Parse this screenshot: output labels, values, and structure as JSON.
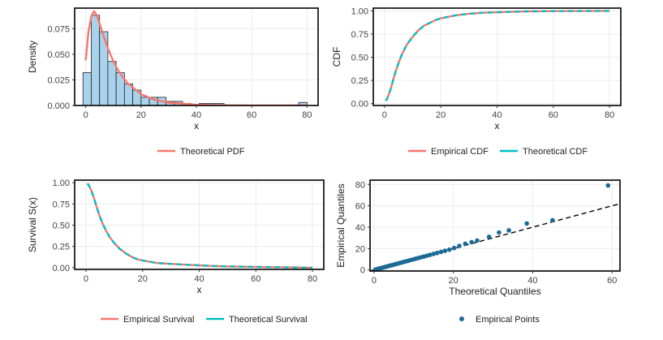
{
  "colors": {
    "red": "#F8766D",
    "cyan": "#00BFC4",
    "bar_fill": "#A9D2EC",
    "point": "#1B6B95",
    "grid": "#ECECEC",
    "ref_line": "#000000"
  },
  "chart_data": [
    {
      "id": "density",
      "type": "bar",
      "xlabel": "x",
      "ylabel": "Density",
      "xlim": [
        -4,
        84
      ],
      "ylim": [
        0,
        0.095
      ],
      "xticks": [
        0,
        20,
        40,
        60,
        80
      ],
      "xtick_labels": [
        "0",
        "20",
        "40",
        "60",
        "80"
      ],
      "yticks": [
        0,
        0.025,
        0.05,
        0.075
      ],
      "ytick_labels": [
        "0.000",
        "0.025",
        "0.050",
        "0.075"
      ],
      "bins": [
        {
          "x0": -1,
          "x1": 2,
          "value": 0.032
        },
        {
          "x0": 2,
          "x1": 5,
          "value": 0.088
        },
        {
          "x0": 5,
          "x1": 8,
          "value": 0.072
        },
        {
          "x0": 8,
          "x1": 11,
          "value": 0.043
        },
        {
          "x0": 11,
          "x1": 14,
          "value": 0.032
        },
        {
          "x0": 14,
          "x1": 17,
          "value": 0.021
        },
        {
          "x0": 17,
          "x1": 20,
          "value": 0.015
        },
        {
          "x0": 20,
          "x1": 23,
          "value": 0.008
        },
        {
          "x0": 23,
          "x1": 26,
          "value": 0.008
        },
        {
          "x0": 26,
          "x1": 29,
          "value": 0.008
        },
        {
          "x0": 29,
          "x1": 32,
          "value": 0.004
        },
        {
          "x0": 32,
          "x1": 35,
          "value": 0.004
        },
        {
          "x0": 35,
          "x1": 38,
          "value": 0.002
        },
        {
          "x0": 38,
          "x1": 41,
          "value": 0.001
        },
        {
          "x0": 41,
          "x1": 44,
          "value": 0.002
        },
        {
          "x0": 44,
          "x1": 47,
          "value": 0.002
        },
        {
          "x0": 47,
          "x1": 50,
          "value": 0.002
        },
        {
          "x0": 77,
          "x1": 80,
          "value": 0.003
        }
      ],
      "series": [
        {
          "name": "Theoretical PDF",
          "color": "#F8766D",
          "x": [
            0,
            1,
            2,
            3,
            4,
            5,
            6,
            8,
            10,
            12,
            15,
            20,
            25,
            30,
            40,
            50,
            60,
            70,
            80
          ],
          "y": [
            0.044,
            0.072,
            0.087,
            0.092,
            0.088,
            0.08,
            0.071,
            0.056,
            0.043,
            0.033,
            0.022,
            0.011,
            0.0055,
            0.0028,
            0.0007,
            0.00018,
            5e-05,
            1e-05,
            0.0
          ]
        }
      ],
      "legend": [
        "Theoretical PDF"
      ]
    },
    {
      "id": "cdf",
      "type": "line",
      "xlabel": "x",
      "ylabel": "CDF",
      "xlim": [
        -4,
        84
      ],
      "ylim": [
        -0.02,
        1.03
      ],
      "xticks": [
        0,
        20,
        40,
        60,
        80
      ],
      "xtick_labels": [
        "0",
        "20",
        "40",
        "60",
        "80"
      ],
      "yticks": [
        0,
        0.25,
        0.5,
        0.75,
        1
      ],
      "ytick_labels": [
        "0.00",
        "0.25",
        "0.50",
        "0.75",
        "1.00"
      ],
      "series": [
        {
          "name": "Empirical CDF",
          "color": "#F8766D",
          "x": [
            0.5,
            1,
            2,
            3,
            4,
            5,
            6,
            7,
            8,
            9,
            10,
            12,
            14,
            16,
            18,
            20,
            25,
            30,
            35,
            40,
            45,
            50,
            60,
            80
          ],
          "y": [
            0.03,
            0.06,
            0.14,
            0.25,
            0.35,
            0.44,
            0.52,
            0.58,
            0.64,
            0.68,
            0.72,
            0.79,
            0.84,
            0.87,
            0.9,
            0.92,
            0.95,
            0.97,
            0.98,
            0.985,
            0.99,
            0.995,
            0.998,
            1.0
          ]
        },
        {
          "name": "Theoretical CDF",
          "color": "#00BFC4",
          "x": [
            0.5,
            1,
            2,
            3,
            4,
            5,
            6,
            7,
            8,
            9,
            10,
            12,
            14,
            16,
            18,
            20,
            25,
            30,
            35,
            40,
            45,
            50,
            60,
            80
          ],
          "y": [
            0.03,
            0.06,
            0.14,
            0.25,
            0.35,
            0.44,
            0.52,
            0.58,
            0.64,
            0.68,
            0.72,
            0.79,
            0.84,
            0.87,
            0.9,
            0.92,
            0.95,
            0.97,
            0.98,
            0.985,
            0.99,
            0.995,
            0.998,
            1.0
          ]
        }
      ],
      "legend": [
        "Empirical CDF",
        "Theoretical CDF"
      ]
    },
    {
      "id": "survival",
      "type": "line",
      "xlabel": "x",
      "ylabel": "Survival S(x)",
      "xlim": [
        -4,
        84
      ],
      "ylim": [
        -0.02,
        1.03
      ],
      "xticks": [
        0,
        20,
        40,
        60,
        80
      ],
      "xtick_labels": [
        "0",
        "20",
        "40",
        "60",
        "80"
      ],
      "yticks": [
        0,
        0.25,
        0.5,
        0.75,
        1
      ],
      "ytick_labels": [
        "0.00",
        "0.25",
        "0.50",
        "0.75",
        "1.00"
      ],
      "series": [
        {
          "name": "Empirical Survival",
          "color": "#F8766D",
          "x": [
            0.5,
            1,
            2,
            3,
            4,
            5,
            6,
            7,
            8,
            9,
            10,
            12,
            14,
            16,
            18,
            20,
            25,
            30,
            35,
            40,
            45,
            50,
            60,
            80
          ],
          "y": [
            0.99,
            0.97,
            0.9,
            0.8,
            0.69,
            0.59,
            0.51,
            0.44,
            0.38,
            0.33,
            0.29,
            0.22,
            0.17,
            0.13,
            0.1,
            0.085,
            0.055,
            0.045,
            0.035,
            0.028,
            0.02,
            0.015,
            0.01,
            0.0
          ]
        },
        {
          "name": "Theoretical Survival",
          "color": "#00BFC4",
          "x": [
            0.5,
            1,
            2,
            3,
            4,
            5,
            6,
            7,
            8,
            9,
            10,
            12,
            14,
            16,
            18,
            20,
            25,
            30,
            35,
            40,
            45,
            50,
            60,
            80
          ],
          "y": [
            0.99,
            0.97,
            0.9,
            0.8,
            0.69,
            0.59,
            0.51,
            0.44,
            0.38,
            0.33,
            0.29,
            0.22,
            0.17,
            0.13,
            0.1,
            0.085,
            0.055,
            0.045,
            0.035,
            0.028,
            0.02,
            0.015,
            0.01,
            0.0
          ]
        }
      ],
      "legend": [
        "Empirical Survival",
        "Theoretical Survival"
      ]
    },
    {
      "id": "qq",
      "type": "scatter",
      "xlabel": "Theoretical Quantiles",
      "ylabel": "Empirical Quantiles",
      "xlim": [
        -1,
        62
      ],
      "ylim": [
        -1,
        84
      ],
      "xticks": [
        0,
        20,
        40,
        60
      ],
      "xtick_labels": [
        "0",
        "20",
        "40",
        "60"
      ],
      "yticks": [
        0,
        20,
        40,
        60,
        80
      ],
      "ytick_labels": [
        "0",
        "20",
        "40",
        "60",
        "80"
      ],
      "reference_line": {
        "x": [
          -1,
          62
        ],
        "y": [
          -1,
          62
        ]
      },
      "points": {
        "x": [
          0.3,
          0.8,
          1.2,
          1.7,
          2.1,
          2.6,
          3.0,
          3.5,
          4.0,
          4.5,
          5.0,
          5.5,
          6.0,
          6.6,
          7.2,
          7.8,
          8.4,
          9.0,
          9.7,
          10.4,
          11.1,
          11.8,
          12.5,
          13.3,
          14.1,
          15.0,
          15.9,
          16.9,
          17.9,
          19.0,
          20.2,
          21.5,
          23.0,
          24.6,
          26.0,
          29.0,
          31.5,
          34.0,
          38.5,
          45.0,
          59.0
        ],
        "y": [
          0.3,
          0.8,
          1.2,
          1.7,
          2.1,
          2.6,
          3.0,
          3.5,
          4.0,
          4.5,
          5.0,
          5.5,
          6.0,
          6.6,
          7.2,
          7.8,
          8.4,
          9.0,
          9.7,
          10.4,
          11.1,
          11.8,
          12.5,
          13.3,
          14.1,
          15.0,
          15.9,
          16.9,
          17.9,
          19.0,
          20.5,
          22.5,
          24.5,
          26.0,
          27.5,
          31.0,
          35.0,
          37.0,
          43.5,
          46.5,
          79.0
        ]
      },
      "legend": [
        "Empirical Points"
      ]
    }
  ]
}
